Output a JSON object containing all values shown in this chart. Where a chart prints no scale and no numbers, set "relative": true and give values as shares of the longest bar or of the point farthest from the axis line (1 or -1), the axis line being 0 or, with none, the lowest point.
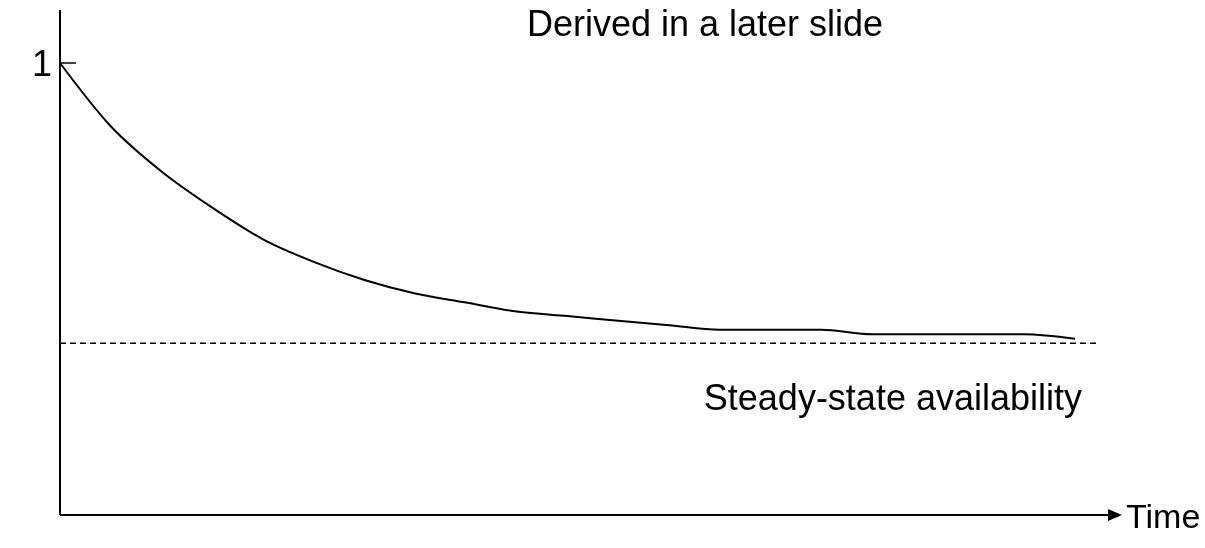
{
  "chart_data": {
    "type": "line",
    "title": "Derived in a later slide",
    "xlabel": "Time",
    "relative": true,
    "categories": [
      null,
      null,
      null,
      null,
      null,
      null,
      null,
      null,
      null,
      null,
      null,
      null,
      null,
      null,
      null,
      null,
      null,
      null,
      null,
      null,
      null
    ],
    "values": [
      1,
      0.86,
      0.76,
      0.68,
      0.61,
      0.56,
      0.52,
      0.49,
      0.47,
      0.45,
      0.44,
      0.43,
      0.42,
      0.41,
      0.41,
      0.41,
      0.4,
      0.4,
      0.4,
      0.4,
      0.39
    ],
    "color": "#000000",
    "line_style": "solid",
    "ref_lines": [
      {
        "axis": "y",
        "value": 0.38,
        "label": "Steady-state availability",
        "color": "#000000",
        "line_style": "dashed"
      }
    ],
    "annotations": [
      "1"
    ]
  }
}
